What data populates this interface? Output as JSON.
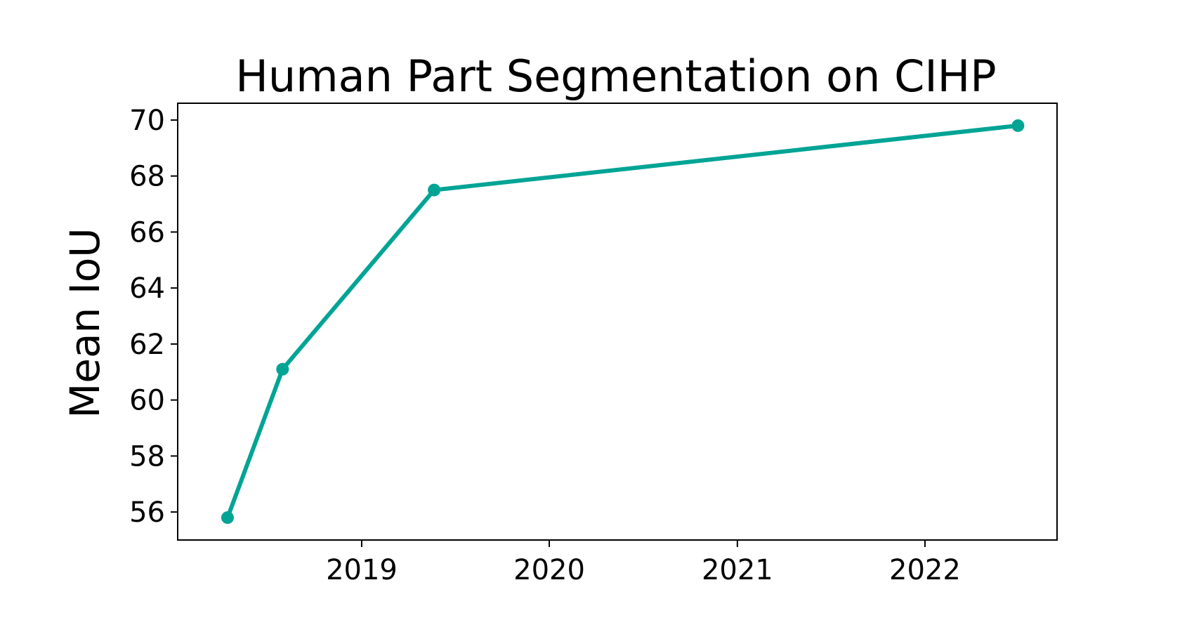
{
  "chart_data": {
    "type": "line",
    "title": "Human Part Segmentation on CIHP",
    "xlabel": "",
    "ylabel": "Mean IoU",
    "x_ticks": [
      "2019",
      "2020",
      "2021",
      "2022"
    ],
    "y_ticks": [
      "56",
      "58",
      "60",
      "62",
      "64",
      "66",
      "68",
      "70"
    ],
    "xlim": [
      "2018-01-08",
      "2022-09-15"
    ],
    "ylim": [
      55.0,
      70.6
    ],
    "grid": false,
    "legend": "none",
    "series": [
      {
        "color": "#00a495",
        "points": [
          {
            "x": "2018-04-15",
            "y": 55.8
          },
          {
            "x": "2018-07-31",
            "y": 61.1
          },
          {
            "x": "2019-05-22",
            "y": 67.5
          },
          {
            "x": "2022-07-01",
            "y": 69.8
          }
        ]
      }
    ]
  }
}
